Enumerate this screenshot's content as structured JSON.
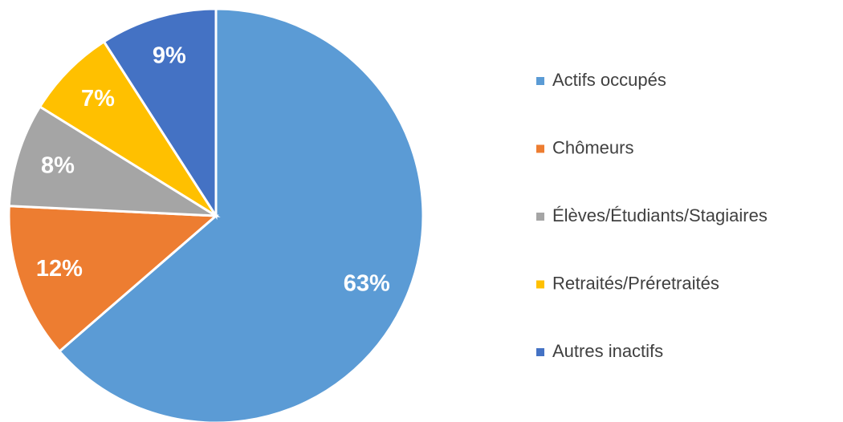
{
  "chart_data": {
    "type": "pie",
    "categories": [
      "Actifs occupés",
      "Chômeurs",
      "Élèves/Étudiants/Stagiaires",
      "Retraités/Préretraités",
      "Autres inactifs"
    ],
    "values": [
      63,
      12,
      8,
      7,
      9
    ],
    "value_labels": [
      "63%",
      "12%",
      "8%",
      "7%",
      "9%"
    ],
    "colors": [
      "#5b9bd5",
      "#ed7d31",
      "#a5a5a5",
      "#ffc000",
      "#4472c4"
    ],
    "legend": "right"
  }
}
